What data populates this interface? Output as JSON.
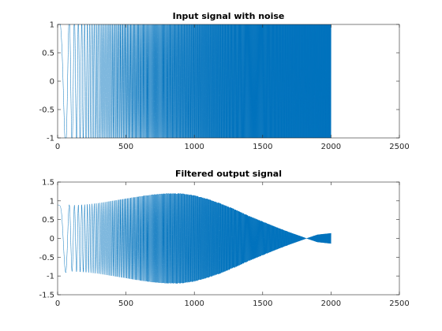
{
  "colors": {
    "series": "#0072bd",
    "axes": "#262626",
    "background": "#ffffff"
  },
  "chart_data": [
    {
      "type": "line",
      "title": "Input signal with noise",
      "xlabel": "",
      "ylabel": "",
      "xlim": [
        0,
        2500
      ],
      "ylim": [
        -1,
        1
      ],
      "xticks": [
        0,
        500,
        1000,
        1500,
        2000,
        2500
      ],
      "xtick_labels": [
        "0",
        "500",
        "1000",
        "1500",
        "2000",
        "2500"
      ],
      "yticks": [
        -1,
        -0.5,
        0,
        0.5,
        1
      ],
      "ytick_labels": [
        "-1",
        "-0.5",
        "0",
        "0.5",
        "1"
      ],
      "grid": false,
      "series": [
        {
          "x_range": [
            0,
            2000
          ],
          "signal": "chirp sweeping upward in frequency, clipped to +/-1, amplitude 1 throughout",
          "envelope": [
            [
              0,
              1.0
            ],
            [
              2000,
              1.0
            ]
          ]
        }
      ]
    },
    {
      "type": "line",
      "title": "Filtered output signal",
      "xlabel": "",
      "ylabel": "",
      "xlim": [
        0,
        2500
      ],
      "ylim": [
        -1.5,
        1.5
      ],
      "xticks": [
        0,
        500,
        1000,
        1500,
        2000,
        2500
      ],
      "xtick_labels": [
        "0",
        "500",
        "1000",
        "1500",
        "2000",
        "2500"
      ],
      "yticks": [
        -1.5,
        -1,
        -0.5,
        0,
        0.5,
        1,
        1.5
      ],
      "ytick_labels": [
        "-1.5",
        "-1",
        "-0.5",
        "0",
        "0.5",
        "1",
        "1.5"
      ],
      "grid": false,
      "series": [
        {
          "x_range": [
            0,
            2000
          ],
          "signal": "filtered chirp, amplitude envelope rising to ~1.2 near x=800 then decaying to ~0 near x=1820",
          "envelope": [
            [
              0,
              0.55
            ],
            [
              30,
              0.95
            ],
            [
              100,
              0.88
            ],
            [
              200,
              0.9
            ],
            [
              300,
              0.94
            ],
            [
              400,
              1.0
            ],
            [
              500,
              1.06
            ],
            [
              600,
              1.12
            ],
            [
              700,
              1.17
            ],
            [
              800,
              1.2
            ],
            [
              900,
              1.2
            ],
            [
              1000,
              1.15
            ],
            [
              1100,
              1.05
            ],
            [
              1200,
              0.92
            ],
            [
              1300,
              0.77
            ],
            [
              1400,
              0.6
            ],
            [
              1500,
              0.45
            ],
            [
              1600,
              0.3
            ],
            [
              1700,
              0.16
            ],
            [
              1800,
              0.03
            ],
            [
              1820,
              0.0
            ],
            [
              1900,
              0.1
            ],
            [
              2000,
              0.14
            ]
          ]
        }
      ]
    }
  ]
}
